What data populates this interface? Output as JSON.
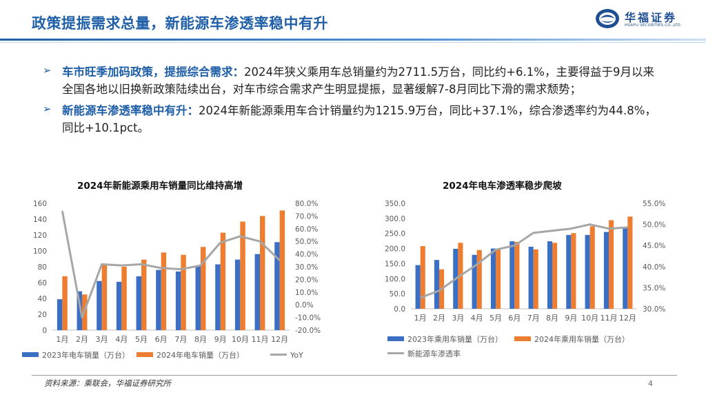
{
  "header": {
    "title": "政策提振需求总量，新能源车渗透率稳中有升",
    "logo_cn": "华福证券",
    "logo_en": "HUAFU SECURITIES CO.,LTD."
  },
  "bullets": [
    {
      "head": "车市旺季加码政策，提振综合需求：",
      "body": "2024年狭义乘用车总销量约为2711.5万台，同比约+6.1%，主要得益于9月以来全国各地以旧换新政策陆续出台，对车市综合需求产生明显提振，显著缓解7-8月同比下滑的需求颓势；"
    },
    {
      "head": "新能源车渗透率稳中有升：",
      "body": "2024年新能源乘用车合计销量约为1215.9万台，同比+37.1%，综合渗透率约为44.8%，同比+10.1pct。"
    }
  ],
  "chart_data": [
    {
      "type": "bar",
      "title": "2024年新能源乘用车销量同比维持高增",
      "categories": [
        "1月",
        "2月",
        "3月",
        "4月",
        "5月",
        "6月",
        "7月",
        "8月",
        "9月",
        "10月",
        "11月",
        "12月"
      ],
      "series": [
        {
          "name": "2023年电车销量（万台）",
          "type": "bar",
          "axis": "left",
          "color": "#3a6fc4",
          "values": [
            39,
            49,
            62,
            61,
            68,
            76,
            74,
            80,
            83,
            89,
            96,
            111
          ]
        },
        {
          "name": "2024年电车销量（万台）",
          "type": "bar",
          "axis": "left",
          "color": "#ed7d31",
          "values": [
            68,
            45,
            83,
            80,
            89,
            98,
            95,
            105,
            123,
            137,
            144,
            151
          ]
        },
        {
          "name": "YoY",
          "type": "line",
          "axis": "right",
          "color": "#a6a6a6",
          "values": [
            0.74,
            -0.1,
            0.32,
            0.31,
            0.32,
            0.29,
            0.28,
            0.31,
            0.49,
            0.54,
            0.5,
            0.35
          ]
        }
      ],
      "ylim": [
        0,
        160
      ],
      "yticks": [
        "0",
        "20",
        "40",
        "60",
        "80",
        "100",
        "120",
        "140",
        "160"
      ],
      "y2lim": [
        -0.2,
        0.8
      ],
      "y2ticks": [
        "-20.0%",
        "-10.0%",
        "0.0%",
        "10.0%",
        "20.0%",
        "30.0%",
        "40.0%",
        "50.0%",
        "60.0%",
        "70.0%",
        "80.0%"
      ],
      "grid": false,
      "legend": "bottom"
    },
    {
      "type": "bar",
      "title": "2024年电车渗透率稳步爬坡",
      "categories": [
        "1月",
        "2月",
        "3月",
        "4月",
        "5月",
        "6月",
        "7月",
        "8月",
        "9月",
        "10月",
        "11月",
        "12月"
      ],
      "series": [
        {
          "name": "2023年乘用车销量（万台）",
          "type": "bar",
          "axis": "left",
          "color": "#3a6fc4",
          "values": [
            145,
            162,
            199,
            179,
            200,
            224,
            206,
            224,
            245,
            245,
            255,
            272
          ]
        },
        {
          "name": "2024年乘用车销量（万台）",
          "type": "bar",
          "axis": "left",
          "color": "#ed7d31",
          "values": [
            208,
            131,
            219,
            195,
            200,
            222,
            197,
            219,
            251,
            274,
            294,
            306
          ]
        },
        {
          "name": "新能源车渗透率",
          "type": "line",
          "axis": "right",
          "color": "#a6a6a6",
          "values": [
            0.326,
            0.343,
            0.375,
            0.405,
            0.44,
            0.45,
            0.48,
            0.485,
            0.49,
            0.5,
            0.49,
            0.493
          ]
        }
      ],
      "ylim": [
        0,
        350
      ],
      "yticks": [
        "0.0",
        "50.0",
        "100.0",
        "150.0",
        "200.0",
        "250.0",
        "300.0",
        "350.0"
      ],
      "y2lim": [
        0.3,
        0.55
      ],
      "y2ticks": [
        "30.0%",
        "35.0%",
        "40.0%",
        "45.0%",
        "50.0%",
        "55.0%"
      ],
      "grid": false,
      "legend": "bottom"
    }
  ],
  "footer": {
    "source": "资料来源：乘联会，华福证券研究所",
    "page": "4"
  }
}
